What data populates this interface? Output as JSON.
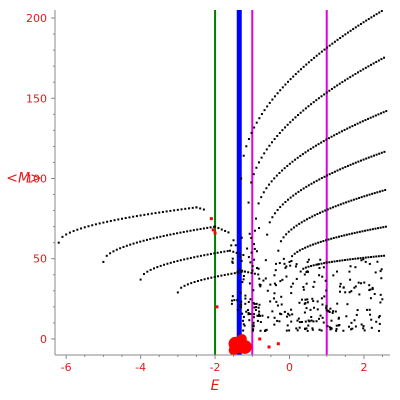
{
  "chart_data": {
    "type": "scatter",
    "title": "",
    "xlabel": "E",
    "ylabel": "<M>",
    "xlim": [
      -6.3,
      2.7
    ],
    "ylim": [
      -10,
      205
    ],
    "x_ticks": [
      -6,
      -4,
      -2,
      0,
      2
    ],
    "y_ticks": [
      0,
      50,
      100,
      150,
      200
    ],
    "x_tick_labels": [
      "-6",
      "-4",
      "-2",
      "0",
      "2"
    ],
    "y_tick_labels": [
      "0",
      "50",
      "100",
      "150",
      "200"
    ],
    "grid": false,
    "legend": "none",
    "colors": {
      "axis_text": "#e31a1c",
      "points": "#000000",
      "highlight": "#ff0000",
      "line_green": "#008000",
      "line_blue": "#0000ff",
      "line_magenta": "#e000e0"
    },
    "vertical_lines": [
      {
        "x": -2.0,
        "color": "#008000",
        "width": 2
      },
      {
        "x": -1.35,
        "color": "#0000ff",
        "width": 5
      },
      {
        "x": -1.0,
        "color": "#e000e0",
        "width": 2
      },
      {
        "x": 1.0,
        "color": "#e000e0",
        "width": 2
      }
    ],
    "curves": [
      {
        "x0": -6.2,
        "x1": -2.5,
        "shape": "sqrt",
        "y0": 60,
        "y1": 82,
        "tail_x": -2.2,
        "tail_y": 80,
        "step": 0.1
      },
      {
        "x0": -5.0,
        "x1": -2.0,
        "shape": "sqrt",
        "y0": 48,
        "y1": 70,
        "tail_x": -1.6,
        "tail_y": 66,
        "step": 0.09
      },
      {
        "x0": -4.0,
        "x1": -1.6,
        "shape": "sqrt",
        "y0": 37,
        "y1": 55,
        "tail_x": -1.2,
        "tail_y": 52,
        "step": 0.09
      },
      {
        "x0": -3.0,
        "x1": -1.2,
        "shape": "sqrt",
        "y0": 29,
        "y1": 42,
        "tail_x": -0.8,
        "tail_y": 40,
        "step": 0.09
      },
      {
        "x0": -1.3,
        "x1": 2.6,
        "shape": "sqrt",
        "y0": 100,
        "y1": 206,
        "tail_x": 2.6,
        "tail_y": 206,
        "step": 0.07
      },
      {
        "x0": -1.1,
        "x1": 2.6,
        "shape": "sqrt",
        "y0": 85,
        "y1": 176,
        "tail_x": 2.6,
        "tail_y": 176,
        "step": 0.07
      },
      {
        "x0": -0.9,
        "x1": 2.6,
        "shape": "sqrt",
        "y0": 75,
        "y1": 142,
        "tail_x": 2.6,
        "tail_y": 142,
        "step": 0.07
      },
      {
        "x0": -0.6,
        "x1": 2.6,
        "shape": "sqrt",
        "y0": 65,
        "y1": 117,
        "tail_x": 2.6,
        "tail_y": 117,
        "step": 0.07
      },
      {
        "x0": -0.3,
        "x1": 2.6,
        "shape": "sqrt",
        "y0": 55,
        "y1": 93,
        "tail_x": 2.6,
        "tail_y": 93,
        "step": 0.07
      },
      {
        "x0": 0.0,
        "x1": 2.6,
        "shape": "sqrt",
        "y0": 48,
        "y1": 70,
        "tail_x": 2.6,
        "tail_y": 70,
        "step": 0.07
      },
      {
        "x0": 0.3,
        "x1": 2.6,
        "shape": "sqrt",
        "y0": 42,
        "y1": 52,
        "tail_x": 2.6,
        "tail_y": 52,
        "step": 0.07
      }
    ],
    "cloud": {
      "xmin": -1.3,
      "xmax": 2.6,
      "ymin": 5,
      "ymax": 50,
      "count": 260
    },
    "red_points": [
      {
        "x": -2.1,
        "y": 75,
        "r": 1.5
      },
      {
        "x": -2.05,
        "y": 68,
        "r": 1.5
      },
      {
        "x": -2.0,
        "y": 66,
        "r": 1.5
      },
      {
        "x": -1.95,
        "y": 20,
        "r": 1.5
      },
      {
        "x": -1.45,
        "y": -3,
        "r": 7
      },
      {
        "x": -1.35,
        "y": -5,
        "r": 6
      },
      {
        "x": -1.2,
        "y": -5,
        "r": 7
      },
      {
        "x": -1.28,
        "y": 0,
        "r": 5
      },
      {
        "x": -1.5,
        "y": -7,
        "r": 5
      },
      {
        "x": -0.8,
        "y": 0,
        "r": 1.5
      },
      {
        "x": -0.55,
        "y": -5,
        "r": 1.5
      },
      {
        "x": -0.3,
        "y": -3,
        "r": 1.5
      }
    ]
  }
}
